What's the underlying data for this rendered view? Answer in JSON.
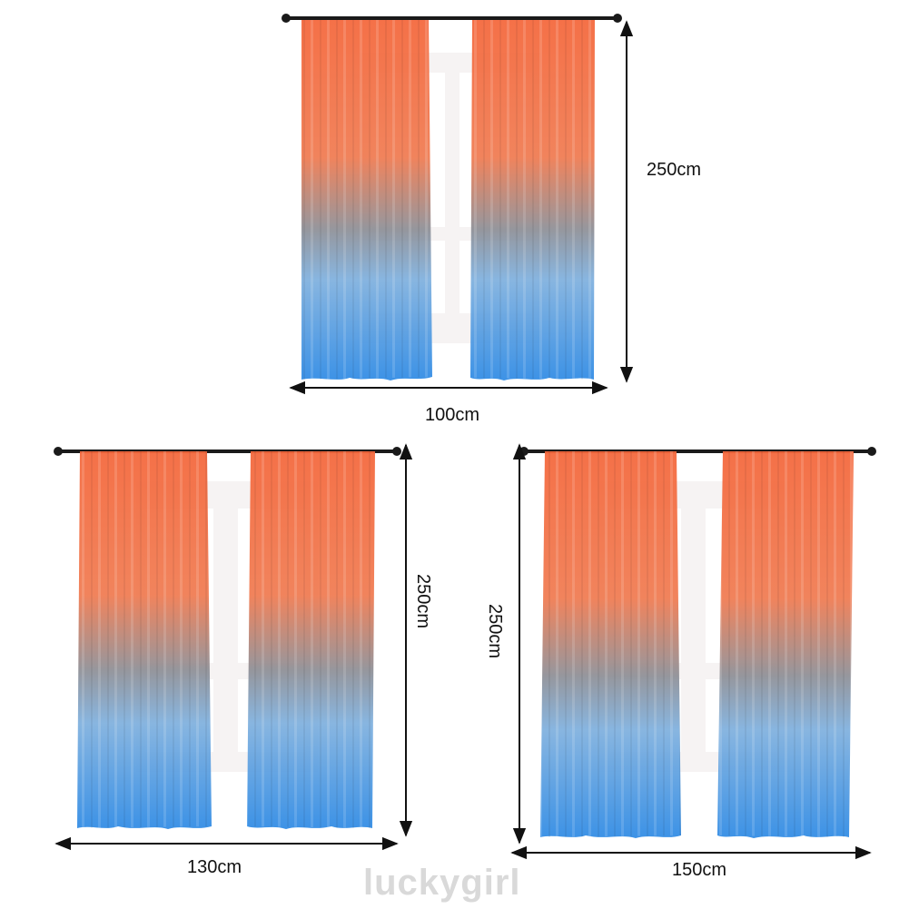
{
  "colors": {
    "top": "#f26d3d",
    "middle": "#8e8f96",
    "bottom": "#2f8fe6",
    "rod": "#1a1a1a",
    "window_frame": "#f4f1f1",
    "arrow": "#111111",
    "watermark": "#d9d9d9"
  },
  "panels": [
    {
      "id": "top",
      "height_label": "250cm",
      "width_label": "100cm"
    },
    {
      "id": "bottom-left",
      "height_label": "250cm",
      "width_label": "130cm"
    },
    {
      "id": "bottom-right",
      "height_label": "250cm",
      "width_label": "150cm"
    }
  ],
  "watermark": "luckygirl"
}
